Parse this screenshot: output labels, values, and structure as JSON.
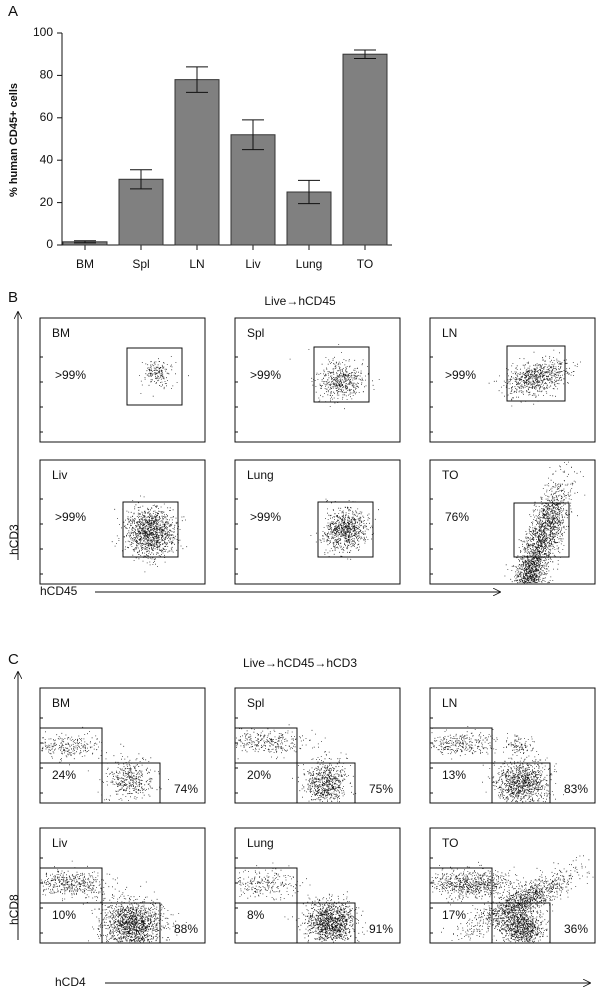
{
  "chart_data": {
    "type": "bar",
    "panel": "A",
    "ylabel": "% human CD45+ cells",
    "categories": [
      "BM",
      "Spl",
      "LN",
      "Liv",
      "Lung",
      "TO"
    ],
    "values": [
      1.5,
      31,
      78,
      52,
      25,
      90
    ],
    "errors": [
      0.5,
      4.5,
      6,
      7,
      5.5,
      2
    ],
    "ylim": [
      0,
      100
    ],
    "yticks": [
      0,
      20,
      40,
      60,
      80,
      100
    ],
    "color": "#808080"
  },
  "panels": [
    {
      "letter": "B",
      "title": "Live→hCD45",
      "ylabel": "hCD3",
      "xlabel": "hCD45",
      "plots": [
        {
          "name": "BM",
          "gates": [
            ">99%"
          ]
        },
        {
          "name": "Spl",
          "gates": [
            ">99%"
          ]
        },
        {
          "name": "LN",
          "gates": [
            ">99%"
          ]
        },
        {
          "name": "Liv",
          "gates": [
            ">99%"
          ]
        },
        {
          "name": "Lung",
          "gates": [
            ">99%"
          ]
        },
        {
          "name": "TO",
          "gates": [
            "76%"
          ]
        }
      ]
    },
    {
      "letter": "C",
      "title": "Live→hCD45→hCD3",
      "ylabel": "hCD8",
      "xlabel": "hCD4",
      "plots": [
        {
          "name": "BM",
          "gates": [
            "24%",
            "74%"
          ]
        },
        {
          "name": "Spl",
          "gates": [
            "20%",
            "75%"
          ]
        },
        {
          "name": "LN",
          "gates": [
            "13%",
            "83%"
          ]
        },
        {
          "name": "Liv",
          "gates": [
            "10%",
            "88%"
          ]
        },
        {
          "name": "Lung",
          "gates": [
            "8%",
            "91%"
          ]
        },
        {
          "name": "TO",
          "gates": [
            "17%",
            "36%"
          ]
        }
      ]
    }
  ]
}
